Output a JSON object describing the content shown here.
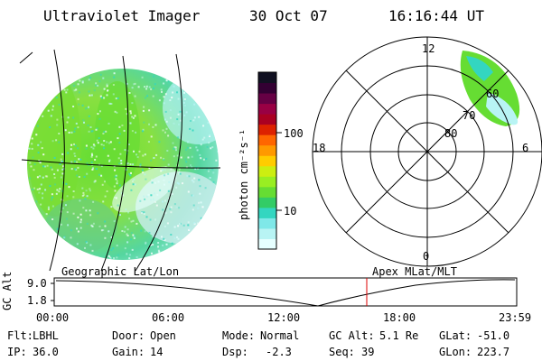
{
  "header": {
    "instrument": "Ultraviolet Imager",
    "date": "30 Oct 07",
    "time": "16:16:44 UT"
  },
  "colorbar": {
    "unit_label": "photon cm⁻²s⁻¹",
    "tick_100": "100",
    "tick_10": "10",
    "colors": [
      "#e6ffff",
      "#b8f4f4",
      "#7fe8e8",
      "#33d6c0",
      "#33cc66",
      "#66dd33",
      "#99ee22",
      "#ccee11",
      "#ffcc00",
      "#ff9900",
      "#ff6600",
      "#dd2200",
      "#aa0022",
      "#990044",
      "#660044",
      "#330033",
      "#111122"
    ]
  },
  "polar": {
    "label_top": "12",
    "label_left": "18",
    "label_right": "6",
    "label_bottom": "0",
    "ring_60": "60",
    "ring_70": "70",
    "ring_80": "80"
  },
  "timeline": {
    "left_label": "Geographic Lat/Lon",
    "right_label": "Apex MLat/MLT",
    "axis_title": "GC Alt",
    "y_top": "9.0",
    "y_bottom": "1.8",
    "ticks": [
      "00:00",
      "06:00",
      "12:00",
      "18:00",
      "23:59"
    ],
    "cursor_color": "#dd0000"
  },
  "info": {
    "filter_label": "Flt:",
    "filter_value": "LBHL",
    "ip_label": "IP:",
    "ip_value": "36.0",
    "door_label": "Door:",
    "door_value": "Open",
    "gain_label": "Gain:",
    "gain_value": "14",
    "mode_label": "Mode:",
    "mode_value": "Normal",
    "dsp_label": "Dsp:",
    "dsp_value": "-2.3",
    "gcalt_label": "GC Alt:",
    "gcalt_value": "5.1 Re",
    "seq_label": "Seq:",
    "seq_value": "39",
    "glat_label": "GLat:",
    "glat_value": "-51.0",
    "glon_label": "GLon:",
    "glon_value": "223.7"
  }
}
